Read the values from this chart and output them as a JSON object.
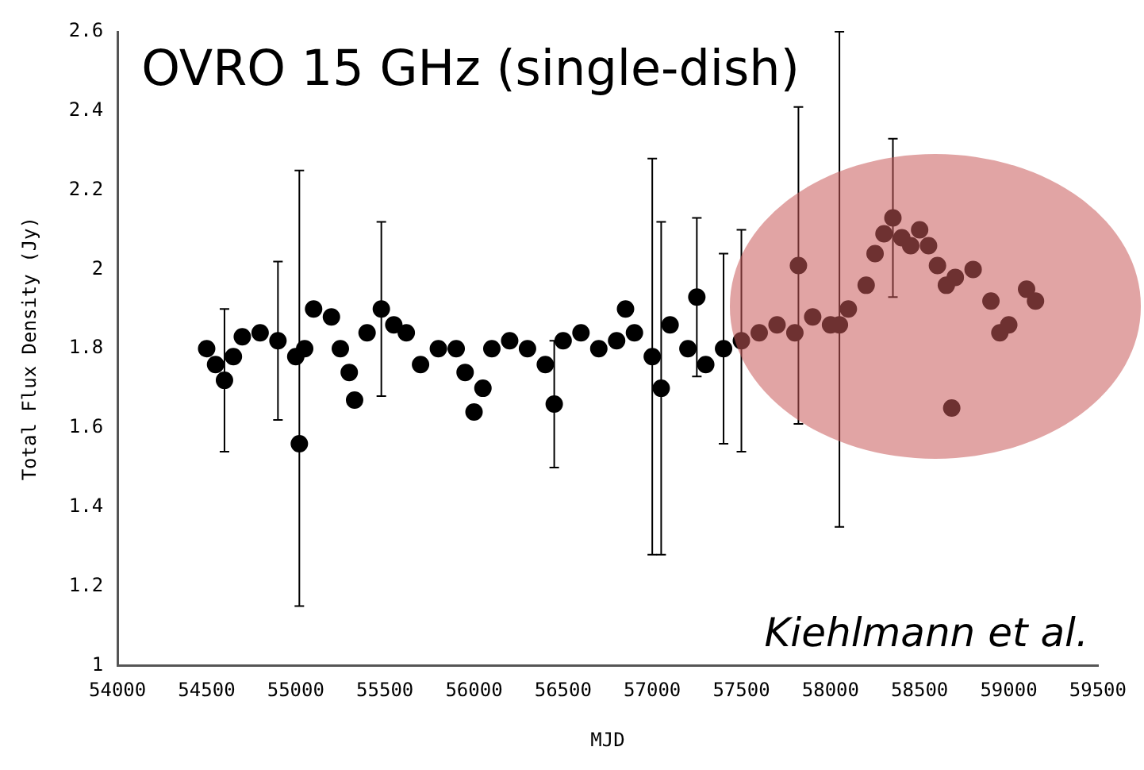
{
  "chart_data": {
    "type": "scatter",
    "xlabel": "MJD",
    "ylabel": "Total Flux Density (Jy)",
    "annotations": [
      "OVRO 15 GHz (single-dish)",
      "Kiehlmann et al."
    ],
    "xlim": [
      54000,
      59500
    ],
    "xticks": [
      54000,
      54500,
      55000,
      55500,
      56000,
      56500,
      57000,
      57500,
      58000,
      58500,
      59000,
      59500
    ],
    "ylim": [
      1,
      2.6
    ],
    "yticks": [
      1,
      1.2,
      1.4,
      1.6,
      1.8,
      2,
      2.2,
      2.4,
      2.6
    ],
    "marker": "circle",
    "series": [
      {
        "color": "#000000",
        "x": [
          54500,
          54550,
          54600,
          54650,
          54700,
          54800,
          54900,
          55000,
          55020,
          55050,
          55100,
          55200,
          55250,
          55300,
          55330,
          55400,
          55480,
          55550,
          55620,
          55700,
          55800,
          55900,
          55950,
          56000,
          56050,
          56100,
          56200,
          56300,
          56400,
          56450,
          56500,
          56600,
          56700,
          56800,
          56850,
          56900,
          57000,
          57050,
          57100,
          57200,
          57250,
          57300,
          57400,
          57500,
          57600,
          57700,
          57800,
          57820,
          57900,
          58000,
          58050,
          58100,
          58200,
          58250,
          58300,
          58350,
          58400,
          58450,
          58500,
          58550,
          58600,
          58650,
          58680,
          58700,
          58800,
          58900,
          58950,
          59000,
          59100,
          59150
        ],
        "values": [
          1.8,
          1.76,
          1.72,
          1.78,
          1.83,
          1.84,
          1.82,
          1.78,
          1.56,
          1.8,
          1.9,
          1.88,
          1.8,
          1.74,
          1.67,
          1.84,
          1.9,
          1.86,
          1.84,
          1.76,
          1.8,
          1.8,
          1.74,
          1.64,
          1.7,
          1.8,
          1.82,
          1.8,
          1.76,
          1.66,
          1.82,
          1.84,
          1.8,
          1.82,
          1.9,
          1.84,
          1.78,
          1.7,
          1.86,
          1.8,
          1.93,
          1.76,
          1.8,
          1.82,
          1.84,
          1.86,
          1.84,
          2.01,
          1.88,
          1.86,
          1.86,
          1.9,
          1.96,
          2.04,
          2.09,
          2.13,
          2.08,
          2.06,
          2.1,
          2.06,
          2.01,
          1.96,
          1.65,
          1.98,
          2,
          1.92,
          1.84,
          1.86,
          1.95,
          1.92
        ],
        "errors": [
          null,
          null,
          0.18,
          null,
          null,
          null,
          0.2,
          null,
          [
            1.15,
            2.25
          ],
          null,
          null,
          null,
          null,
          null,
          null,
          null,
          0.22,
          null,
          null,
          null,
          null,
          null,
          null,
          null,
          null,
          null,
          null,
          null,
          null,
          0.16,
          null,
          null,
          null,
          null,
          null,
          null,
          0.5,
          0.42,
          null,
          null,
          0.2,
          null,
          0.24,
          0.28,
          null,
          null,
          null,
          0.4,
          null,
          null,
          [
            1.35,
            2.6
          ],
          null,
          null,
          null,
          null,
          0.2,
          null,
          null,
          null,
          null,
          null,
          null,
          null,
          null,
          null,
          null,
          null,
          null,
          null,
          null
        ]
      }
    ]
  }
}
